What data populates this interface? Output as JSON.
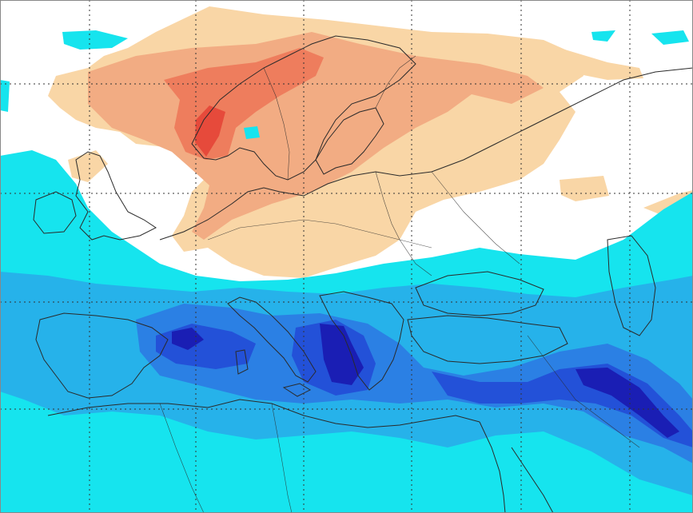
{
  "map": {
    "palette": {
      "background": "#ffffff",
      "warm_light": "#f9d6a6",
      "warm_medium": "#f2ac83",
      "warm_strong": "#ee7d5d",
      "warm_peak": "#e64a3b",
      "cold_cyan": "#16e4ee",
      "cold_sky": "#26b2ea",
      "cold_blue": "#2b80e4",
      "cold_deep": "#2351d8",
      "cold_navy": "#1a1eb4",
      "coastline": "#2a2a2a",
      "grid": "#333333"
    },
    "grid_style": "dotted",
    "regions": [
      {
        "id": "scandinavia-warm-anomaly",
        "category": "warm"
      },
      {
        "id": "norway-peak-anomaly",
        "category": "warm-peak"
      },
      {
        "id": "mediterranean-cold-anomaly",
        "category": "cold"
      },
      {
        "id": "ionian-deep-anomaly",
        "category": "cold-deep"
      },
      {
        "id": "anatolia-iran-cold-anomaly",
        "category": "cold-deep"
      }
    ]
  }
}
